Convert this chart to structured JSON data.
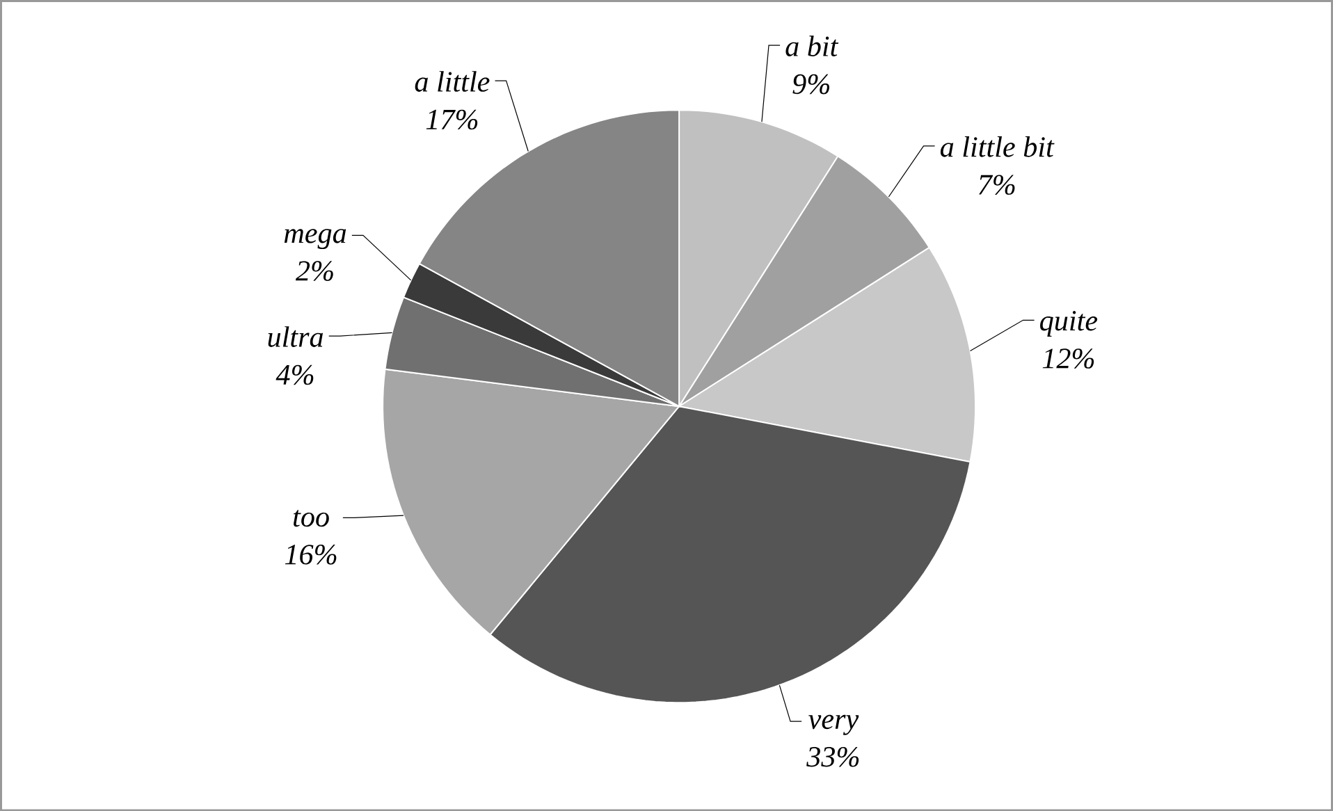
{
  "chart_data": {
    "type": "pie",
    "categories": [
      "a bit",
      "a little bit",
      "quite",
      "very",
      "too",
      "ultra",
      "mega",
      "a little"
    ],
    "values": [
      9,
      7,
      12,
      33,
      16,
      4,
      2,
      17
    ],
    "value_labels": [
      "9%",
      "7%",
      "12%",
      "33%",
      "16%",
      "4%",
      "2%",
      "17%"
    ],
    "colors": [
      "#c0c0c0",
      "#a0a0a0",
      "#c8c8c8",
      "#555555",
      "#a6a6a6",
      "#707070",
      "#3a3a3a",
      "#858585"
    ]
  }
}
